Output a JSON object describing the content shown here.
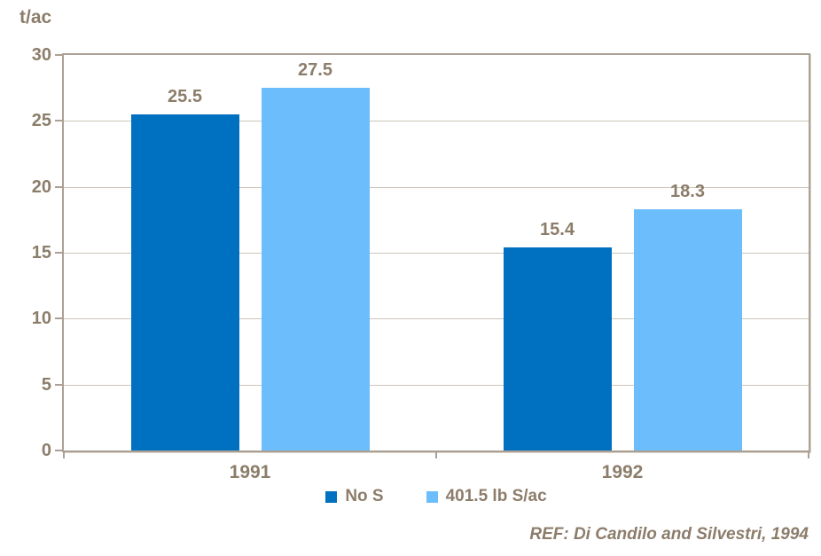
{
  "chart_data": {
    "type": "bar",
    "title": "",
    "ylabel": "t/ac",
    "xlabel": "",
    "ylim": [
      0,
      30
    ],
    "ytick_step": 5,
    "yticks": [
      0,
      5,
      10,
      15,
      20,
      25,
      30
    ],
    "grid": true,
    "value_labels": true,
    "legend_position": "bottom",
    "categories": [
      "1991",
      "1992"
    ],
    "series": [
      {
        "name": "No S",
        "color": "#0070C0",
        "values": [
          25.5,
          15.4
        ]
      },
      {
        "name": "401.5 lb S/ac",
        "color": "#6CBDFC",
        "values": [
          27.5,
          18.3
        ]
      }
    ]
  },
  "footer": {
    "ref_label": "REF: Di Candilo and Silvestri, 1994"
  },
  "colors": {
    "axis": "#ACA094",
    "grid": "#CCC5B9",
    "text": "#8C7D6B",
    "background": "#FFFFFF",
    "series_dark_blue": "#0070C0",
    "series_light_blue": "#6CBDFC"
  }
}
